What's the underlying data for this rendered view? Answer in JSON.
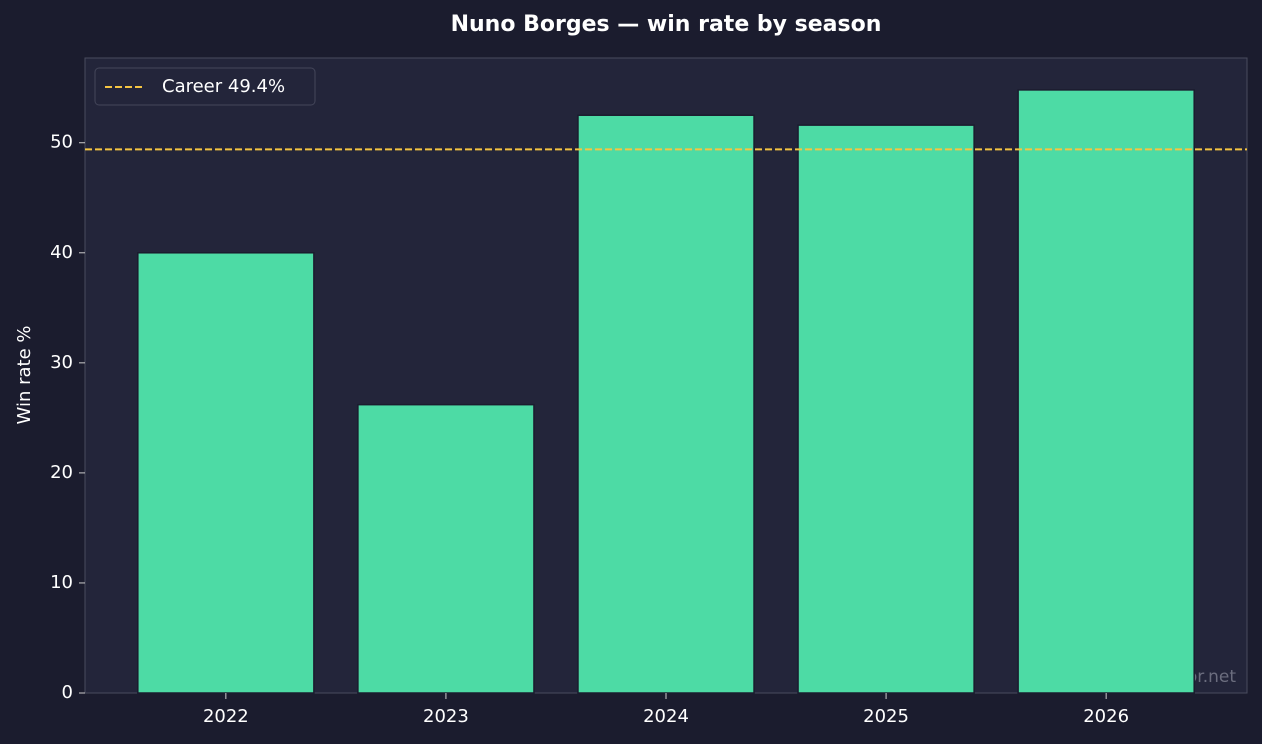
{
  "chart_data": {
    "type": "bar",
    "title": "Nuno Borges — win rate by season",
    "y_label": "Win rate %",
    "categories": [
      "2022",
      "2023",
      "2024",
      "2025",
      "2026"
    ],
    "values": [
      40.0,
      26.2,
      52.5,
      51.6,
      54.8
    ],
    "color": "#4ddba5",
    "ylim": [
      0,
      57.7
    ],
    "yticks": [
      0,
      10,
      20,
      30,
      40,
      50
    ],
    "reference_line": {
      "value": 49.4,
      "label": "Career 49.4%",
      "color": "#f5c542"
    },
    "legend": "upper left",
    "watermark": "tennispredictor.net"
  }
}
